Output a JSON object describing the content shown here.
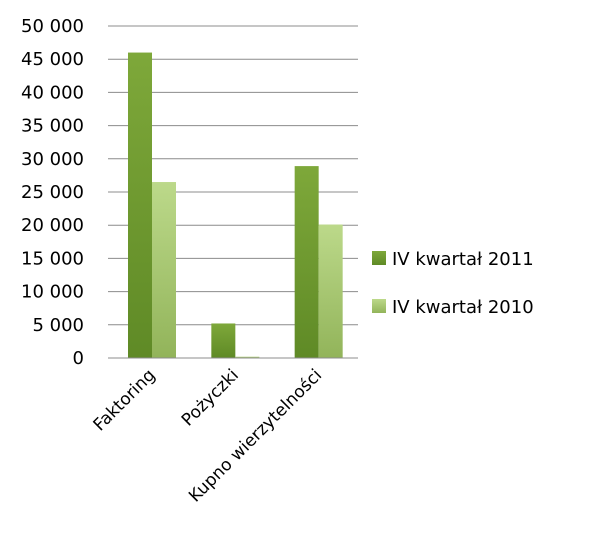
{
  "chart_data": {
    "type": "bar",
    "categories": [
      "Faktoring",
      "Pożyczki",
      "Kupno wierzytelności"
    ],
    "series": [
      {
        "name": "IV kwartał 2011",
        "values": [
          46000,
          5200,
          28900
        ],
        "color": "#6f9a2e"
      },
      {
        "name": "IV kwartał 2010",
        "values": [
          26500,
          200,
          20100
        ],
        "color": "#a8c86a"
      }
    ],
    "yticks": [
      "0",
      "5 000",
      "10 000",
      "15 000",
      "20 000",
      "25 000",
      "30 000",
      "35 000",
      "40 000",
      "45 000",
      "50 000"
    ],
    "ylim": [
      0,
      50000
    ],
    "grid": true,
    "legend_position": "right"
  }
}
